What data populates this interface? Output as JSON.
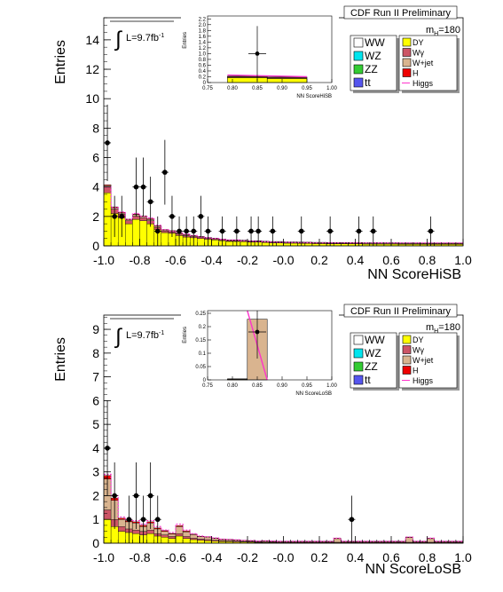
{
  "chart_data": [
    {
      "type": "bar",
      "panel": "top",
      "header": "CDF Run II Preliminary",
      "mass_label": "m",
      "mass_sub": "H",
      "mass_value": "=180",
      "lumi_label": "L=9.7fb",
      "lumi_sup": "-1",
      "xlabel": "NN ScoreHiSB",
      "ylabel": "Entries",
      "xlim": [
        -1.0,
        1.0
      ],
      "ylim": [
        0,
        15.5
      ],
      "xticks": [
        "-1.0",
        "-0.8",
        "-0.6",
        "-0.4",
        "-0.2",
        "-0.0",
        "0.2",
        "0.4",
        "0.6",
        "0.8",
        "1.0"
      ],
      "yticks": [
        "0",
        "2",
        "4",
        "6",
        "8",
        "10",
        "12",
        "14"
      ],
      "bin_edges_start": -1.0,
      "bin_width": 0.04,
      "stack": {
        "DY": [
          3.6,
          2.2,
          1.9,
          1.5,
          1.8,
          1.7,
          1.5,
          1.1,
          0.9,
          0.85,
          0.7,
          0.6,
          0.55,
          0.5,
          0.45,
          0.4,
          0.35,
          0.3,
          0.3,
          0.28,
          0.25,
          0.25,
          0.22,
          0.2,
          0.2,
          0.18,
          0.18,
          0.17,
          0.16,
          0.15,
          0.15,
          0.14,
          0.14,
          0.14,
          0.13,
          0.13,
          0.12,
          0.12,
          0.12,
          0.12,
          0.12,
          0.11,
          0.11,
          0.11,
          0.1,
          0.1,
          0.1,
          0.1,
          0.1,
          0.1
        ],
        "Wgamma": [
          0.4,
          0.3,
          0.25,
          0.2,
          0.22,
          0.2,
          0.2,
          0.15,
          0.12,
          0.1,
          0.1,
          0.08,
          0.08,
          0.07,
          0.06,
          0.06,
          0.05,
          0.05,
          0.05,
          0.05,
          0.04,
          0.04,
          0.04,
          0.04,
          0.04,
          0.03,
          0.03,
          0.03,
          0.03,
          0.03,
          0.03,
          0.03,
          0.03,
          0.03,
          0.03,
          0.03,
          0.03,
          0.03,
          0.03,
          0.03,
          0.03,
          0.03,
          0.03,
          0.03,
          0.03,
          0.03,
          0.03,
          0.03,
          0.03,
          0.03
        ],
        "Wjet": [
          0.1,
          0.1,
          0.08,
          0.08,
          0.1,
          0.1,
          0.1,
          0.08,
          0.06,
          0.06,
          0.05,
          0.05,
          0.05,
          0.05,
          0.04,
          0.04,
          0.04,
          0.04,
          0.04,
          0.04,
          0.04,
          0.04,
          0.04,
          0.04,
          0.04,
          0.04,
          0.04,
          0.04,
          0.04,
          0.04,
          0.04,
          0.04,
          0.04,
          0.04,
          0.04,
          0.04,
          0.04,
          0.04,
          0.04,
          0.04,
          0.04,
          0.04,
          0.04,
          0.04,
          0.04,
          0.04,
          0.04,
          0.04,
          0.04,
          0.04
        ],
        "H": [
          0.05,
          0.05,
          0.04,
          0.04,
          0.04,
          0.04,
          0.04,
          0.03,
          0.03,
          0.03,
          0.03,
          0.03,
          0.02,
          0.02,
          0.02,
          0.02,
          0.02,
          0.02,
          0.02,
          0.02,
          0.02,
          0.02,
          0.02,
          0.02,
          0.02,
          0.02,
          0.02,
          0.02,
          0.02,
          0.02,
          0.02,
          0.02,
          0.02,
          0.02,
          0.02,
          0.02,
          0.02,
          0.02,
          0.02,
          0.02,
          0.02,
          0.02,
          0.02,
          0.02,
          0.02,
          0.02,
          0.02,
          0.02,
          0.02,
          0.02
        ]
      },
      "higgs": [
        4.0,
        2.6,
        2.3,
        1.8,
        2.2,
        2.0,
        1.9,
        1.4,
        1.1,
        1.0,
        0.9,
        0.8,
        0.7,
        0.6,
        0.55,
        0.5,
        0.45,
        0.4,
        0.4,
        0.35,
        0.32,
        0.3,
        0.28,
        0.26,
        0.25,
        0.24,
        0.23,
        0.22,
        0.21,
        0.2,
        0.2,
        0.2,
        0.2,
        0.2,
        0.2,
        0.2,
        0.2,
        0.2,
        0.2,
        0.2,
        0.2,
        0.2,
        0.2,
        0.2,
        0.2,
        0.2,
        0.2,
        0.2,
        0.2,
        0.2
      ],
      "points": [
        {
          "x": -0.98,
          "y": 7,
          "err": 2.6
        },
        {
          "x": -0.94,
          "y": 2,
          "err": 1.4
        },
        {
          "x": -0.9,
          "y": 2,
          "err": 1.4
        },
        {
          "x": -0.82,
          "y": 4,
          "err": 2.0
        },
        {
          "x": -0.78,
          "y": 4,
          "err": 2.0
        },
        {
          "x": -0.74,
          "y": 3,
          "err": 1.7
        },
        {
          "x": -0.7,
          "y": 1,
          "err": 1.0
        },
        {
          "x": -0.66,
          "y": 5,
          "err": 2.2
        },
        {
          "x": -0.62,
          "y": 2,
          "err": 1.4
        },
        {
          "x": -0.58,
          "y": 1,
          "err": 1.0
        },
        {
          "x": -0.54,
          "y": 1,
          "err": 1.0
        },
        {
          "x": -0.5,
          "y": 1,
          "err": 1.0
        },
        {
          "x": -0.46,
          "y": 2,
          "err": 1.4
        },
        {
          "x": -0.42,
          "y": 1,
          "err": 1.0
        },
        {
          "x": -0.34,
          "y": 1,
          "err": 1.0
        },
        {
          "x": -0.26,
          "y": 1,
          "err": 1.0
        },
        {
          "x": -0.18,
          "y": 1,
          "err": 1.0
        },
        {
          "x": -0.14,
          "y": 1,
          "err": 1.0
        },
        {
          "x": -0.06,
          "y": 1,
          "err": 1.0
        },
        {
          "x": 0.1,
          "y": 1,
          "err": 1.0
        },
        {
          "x": 0.26,
          "y": 1,
          "err": 1.0
        },
        {
          "x": 0.42,
          "y": 1,
          "err": 1.0
        },
        {
          "x": 0.5,
          "y": 1,
          "err": 1.0
        },
        {
          "x": 0.82,
          "y": 1,
          "err": 1.0
        }
      ],
      "inset": {
        "xlabel": "NN ScoreHiSB",
        "ylabel": "Entries",
        "xlim": [
          0.75,
          1.0
        ],
        "ylim": [
          0,
          2.3
        ],
        "xticks": [
          "0.75",
          "0.80",
          "0.85",
          "0.90",
          "0.95",
          "1.00"
        ],
        "yticks": [
          "0",
          "0.2",
          "0.4",
          "0.6",
          "0.8",
          "1.0",
          "1.2",
          "1.4",
          "1.6",
          "1.8",
          "2.0",
          "2.2"
        ],
        "bars": [
          {
            "x0": 0.79,
            "x1": 0.87,
            "DY": 0.17,
            "Wgamma": 0.03,
            "Wjet": 0.02
          },
          {
            "x0": 0.87,
            "x1": 0.95,
            "DY": 0.14,
            "Wgamma": 0.03,
            "Wjet": 0.02
          }
        ],
        "higgs": [
          [
            0.79,
            0.26
          ],
          [
            0.95,
            0.2
          ]
        ],
        "point": {
          "x": 0.85,
          "y": 1,
          "err": 0.95
        }
      }
    },
    {
      "type": "bar",
      "panel": "bottom",
      "header": "CDF Run II Preliminary",
      "mass_label": "m",
      "mass_sub": "H",
      "mass_value": "=180",
      "lumi_label": "L=9.7fb",
      "lumi_sup": "-1",
      "xlabel": "NN ScoreLoSB",
      "ylabel": "Entries",
      "xlim": [
        -1.0,
        1.0
      ],
      "ylim": [
        0,
        9.6
      ],
      "xticks": [
        "-1.0",
        "-0.8",
        "-0.6",
        "-0.4",
        "-0.2",
        "-0.0",
        "0.2",
        "0.4",
        "0.6",
        "0.8",
        "1.0"
      ],
      "yticks": [
        "0",
        "1",
        "2",
        "3",
        "4",
        "5",
        "6",
        "7",
        "8",
        "9"
      ],
      "bin_edges_start": -1.0,
      "bin_width": 0.04,
      "stack": {
        "DY": [
          1.0,
          0.7,
          0.5,
          0.45,
          0.4,
          0.35,
          0.4,
          0.3,
          0.25,
          0.2,
          0.3,
          0.2,
          0.15,
          0.12,
          0.1,
          0.08,
          0.07,
          0.06,
          0.05,
          0.05,
          0.04,
          0.03,
          0.03,
          0.03,
          0.02,
          0.02,
          0.02,
          0.02,
          0.02,
          0.02,
          0.02,
          0.02,
          0.02,
          0.02,
          0.02,
          0.02,
          0.02,
          0.02,
          0.02,
          0.02,
          0.02,
          0.02,
          0.02,
          0.02,
          0.02,
          0.02,
          0.02,
          0.02,
          0.02,
          0.02
        ],
        "Wgamma": [
          0.4,
          0.3,
          0.2,
          0.15,
          0.15,
          0.15,
          0.15,
          0.1,
          0.1,
          0.08,
          0.1,
          0.08,
          0.06,
          0.05,
          0.05,
          0.04,
          0.03,
          0.03,
          0.03,
          0.02,
          0.02,
          0.02,
          0.02,
          0.02,
          0.02,
          0.02,
          0.02,
          0.02,
          0.02,
          0.02,
          0.02,
          0.02,
          0.02,
          0.02,
          0.02,
          0.02,
          0.02,
          0.02,
          0.02,
          0.02,
          0.02,
          0.02,
          0.02,
          0.02,
          0.02,
          0.02,
          0.02,
          0.02,
          0.02,
          0.02
        ],
        "Wjet": [
          1.3,
          0.8,
          0.3,
          0.3,
          0.3,
          0.2,
          0.3,
          0.2,
          0.15,
          0.1,
          0.3,
          0.2,
          0.15,
          0.1,
          0.1,
          0.08,
          0.05,
          0.05,
          0.04,
          0.03,
          0.03,
          0.02,
          0.03,
          0.02,
          0.02,
          0.02,
          0.02,
          0.02,
          0.02,
          0.02,
          0.02,
          0.02,
          0.15,
          0.02,
          0.02,
          0.02,
          0.02,
          0.02,
          0.02,
          0.02,
          0.02,
          0.02,
          0.2,
          0.02,
          0.02,
          0.15,
          0.02,
          0.02,
          0.02,
          0.02
        ],
        "H": [
          0.15,
          0.1,
          0.05,
          0.05,
          0.05,
          0.05,
          0.05,
          0.04,
          0.03,
          0.03,
          0.04,
          0.03,
          0.02,
          0.02,
          0.02,
          0.02,
          0.02,
          0.02,
          0.02,
          0.02,
          0.02,
          0.02,
          0.02,
          0.02,
          0.02,
          0.02,
          0.02,
          0.02,
          0.02,
          0.02,
          0.02,
          0.02,
          0.02,
          0.02,
          0.02,
          0.02,
          0.02,
          0.02,
          0.02,
          0.02,
          0.02,
          0.02,
          0.02,
          0.02,
          0.02,
          0.02,
          0.02,
          0.02,
          0.02,
          0.02
        ]
      },
      "higgs": [
        2.9,
        2.0,
        1.1,
        1.0,
        0.95,
        0.8,
        0.95,
        0.7,
        0.55,
        0.45,
        0.8,
        0.55,
        0.4,
        0.3,
        0.27,
        0.22,
        0.17,
        0.16,
        0.14,
        0.12,
        0.11,
        0.09,
        0.1,
        0.09,
        0.08,
        0.08,
        0.08,
        0.08,
        0.08,
        0.08,
        0.08,
        0.08,
        0.21,
        0.08,
        0.08,
        0.08,
        0.08,
        0.08,
        0.08,
        0.08,
        0.08,
        0.08,
        0.26,
        0.08,
        0.08,
        0.21,
        0.08,
        0.08,
        0.08,
        0.08
      ],
      "points": [
        {
          "x": -0.98,
          "y": 4,
          "err": 2.0
        },
        {
          "x": -0.94,
          "y": 2,
          "err": 1.4
        },
        {
          "x": -0.86,
          "y": 1,
          "err": 1.0
        },
        {
          "x": -0.82,
          "y": 2,
          "err": 1.4
        },
        {
          "x": -0.78,
          "y": 1,
          "err": 1.0
        },
        {
          "x": -0.74,
          "y": 2,
          "err": 1.4
        },
        {
          "x": -0.7,
          "y": 1,
          "err": 1.0
        },
        {
          "x": 0.38,
          "y": 1,
          "err": 1.0
        }
      ],
      "inset": {
        "xlabel": "NN ScoreLoSB",
        "ylabel": "Entries",
        "xlim": [
          0.75,
          1.0
        ],
        "ylim": [
          0,
          0.26
        ],
        "xticks": [
          "0.75",
          "0.80",
          "0.85",
          "0.90",
          "0.95",
          "1.00"
        ],
        "yticks": [
          "0",
          "0.05",
          "0.1",
          "0.15",
          "0.2",
          "0.25"
        ],
        "bars": [
          {
            "x0": 0.79,
            "x1": 0.83,
            "DY": 0.001,
            "Wgamma": 0.001,
            "Wjet": 0.002
          },
          {
            "x0": 0.83,
            "x1": 0.87,
            "DY": 0.0,
            "Wgamma": 0.0,
            "Wjet": 0.228
          }
        ],
        "higgs_line": [
          [
            0.83,
            0.26
          ],
          [
            0.87,
            0.0
          ]
        ],
        "point": {
          "x": 0.85,
          "y": 0.18,
          "err": 0.1
        }
      }
    }
  ],
  "legend": {
    "left": [
      {
        "label": "WW",
        "color": "#ffffff"
      },
      {
        "label": "WZ",
        "color": "#00e5ee"
      },
      {
        "label": "ZZ",
        "color": "#33cc33"
      },
      {
        "label": "t",
        "color": "#5555ee"
      }
    ],
    "tt_bar": "t",
    "right": [
      {
        "label": "DY",
        "color": "#ffff00"
      },
      {
        "label": "Wγ",
        "color": "#cc5566"
      },
      {
        "label": "W+jet",
        "color": "#d9b48f"
      },
      {
        "label": "H",
        "color": "#ee0000"
      },
      {
        "label": "Higgs",
        "color": "#ff33cc",
        "line": true
      }
    ]
  },
  "colors": {
    "DY": "#ffff00",
    "Wgamma": "#cc5566",
    "Wjet": "#d9b48f",
    "H": "#ee0000",
    "higgs": "#ff33cc"
  }
}
